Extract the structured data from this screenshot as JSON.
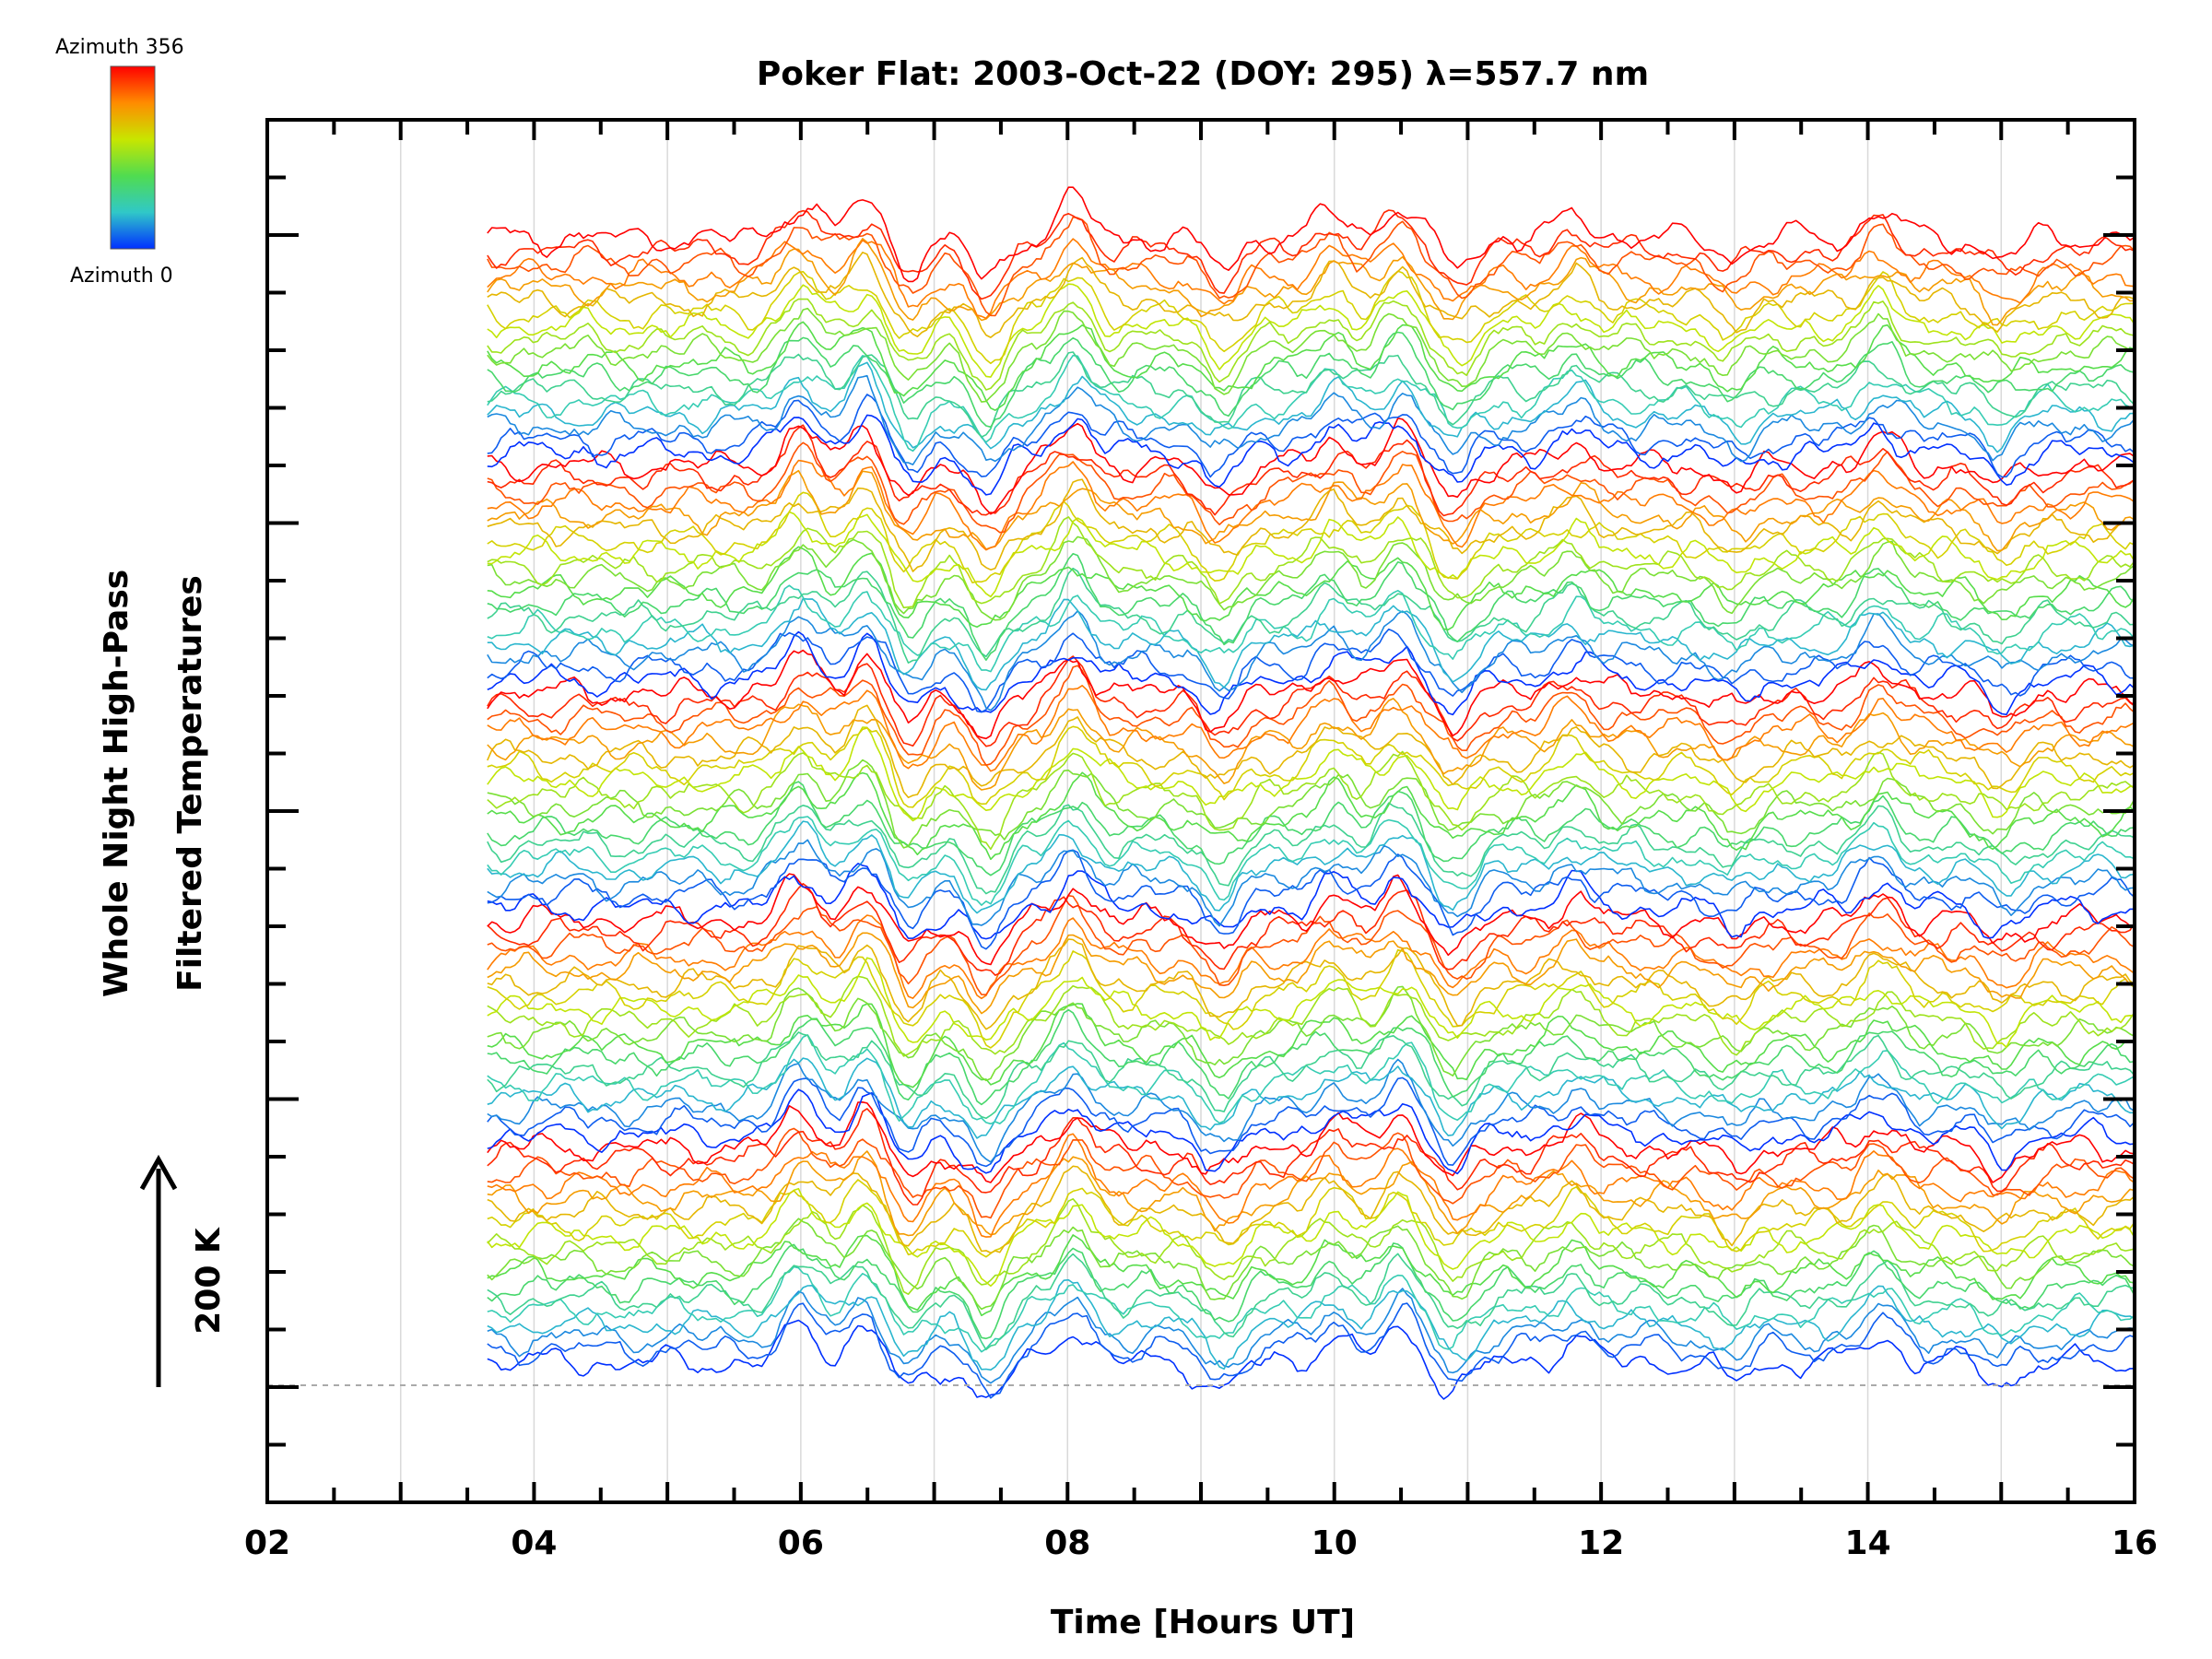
{
  "chart_data": {
    "type": "line",
    "title": "Poker Flat: 2003-Oct-22 (DOY: 295) λ=557.7 nm",
    "xlabel": "Time [Hours UT]",
    "ylabel_line1": "Whole Night High-Pass",
    "ylabel_line2": "Filtered Temperatures",
    "scale_label": "200 K",
    "xlim": [
      2,
      16
    ],
    "x_ticks": [
      "02",
      "04",
      "06",
      "08",
      "10",
      "12",
      "14",
      "16"
    ],
    "data_start_hour": 3.65,
    "data_end_hour": 16.0,
    "colorbar": {
      "top_label": "Azimuth 356",
      "bottom_label": "Azimuth 0",
      "colors": [
        "#ff0000",
        "#ff8c00",
        "#c8e600",
        "#50dc50",
        "#30c8c8",
        "#0030ff"
      ]
    },
    "grid": true,
    "n_traces": 90,
    "trace_groups": 5,
    "features": [
      {
        "hour": 6.0,
        "amplitude": 1.0
      },
      {
        "hour": 6.5,
        "amplitude": 1.1
      },
      {
        "hour": 6.8,
        "amplitude": -0.9
      },
      {
        "hour": 7.4,
        "amplitude": -1.1
      },
      {
        "hour": 8.05,
        "amplitude": 1.0
      },
      {
        "hour": 9.15,
        "amplitude": -0.8
      },
      {
        "hour": 10.0,
        "amplitude": 0.7
      },
      {
        "hour": 10.5,
        "amplitude": 0.9
      },
      {
        "hour": 10.9,
        "amplitude": -0.8
      },
      {
        "hour": 11.8,
        "amplitude": 0.6
      },
      {
        "hour": 13.0,
        "amplitude": -0.5
      },
      {
        "hour": 14.1,
        "amplitude": 0.7
      },
      {
        "hour": 15.0,
        "amplitude": -0.6
      }
    ]
  }
}
